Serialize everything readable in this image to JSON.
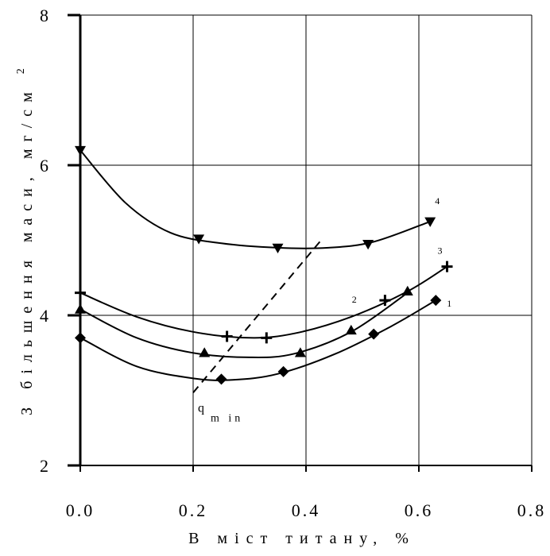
{
  "chart_data": {
    "type": "line",
    "xlabel": "В міст титану, %",
    "ylabel": "З більшення маси, мг/см",
    "ylabel_sup": "2",
    "xlim": [
      0,
      0.8
    ],
    "ylim": [
      2,
      8
    ],
    "x_ticks": [
      "0.0",
      "0.2",
      "0.4",
      "0.6",
      "0.8"
    ],
    "y_ticks": [
      "2",
      "4",
      "6",
      "8"
    ],
    "grid": true,
    "series": [
      {
        "name": "1",
        "marker": "diamond",
        "points": [
          [
            0.0,
            3.7
          ],
          [
            0.25,
            3.15
          ],
          [
            0.36,
            3.25
          ],
          [
            0.52,
            3.75
          ],
          [
            0.63,
            4.2
          ]
        ],
        "curve": [
          [
            0.0,
            3.7
          ],
          [
            0.1,
            3.32
          ],
          [
            0.2,
            3.16
          ],
          [
            0.27,
            3.14
          ],
          [
            0.35,
            3.22
          ],
          [
            0.45,
            3.48
          ],
          [
            0.55,
            3.85
          ],
          [
            0.63,
            4.2
          ]
        ]
      },
      {
        "name": "2",
        "marker": "triangle-up",
        "points": [
          [
            0.0,
            4.08
          ],
          [
            0.22,
            3.5
          ],
          [
            0.39,
            3.5
          ],
          [
            0.48,
            3.8
          ],
          [
            0.58,
            4.32
          ]
        ],
        "curve": [
          [
            0.0,
            4.08
          ],
          [
            0.1,
            3.7
          ],
          [
            0.2,
            3.5
          ],
          [
            0.3,
            3.44
          ],
          [
            0.38,
            3.49
          ],
          [
            0.48,
            3.78
          ],
          [
            0.58,
            4.3
          ]
        ]
      },
      {
        "name": "3",
        "marker": "plus",
        "points": [
          [
            0.0,
            4.3
          ],
          [
            0.26,
            3.72
          ],
          [
            0.33,
            3.7
          ],
          [
            0.54,
            4.2
          ],
          [
            0.65,
            4.65
          ]
        ],
        "curve": [
          [
            0.0,
            4.3
          ],
          [
            0.1,
            3.98
          ],
          [
            0.2,
            3.78
          ],
          [
            0.3,
            3.7
          ],
          [
            0.38,
            3.76
          ],
          [
            0.48,
            3.98
          ],
          [
            0.58,
            4.32
          ],
          [
            0.65,
            4.65
          ]
        ]
      },
      {
        "name": "4",
        "marker": "triangle-down",
        "points": [
          [
            0.0,
            6.2
          ],
          [
            0.21,
            5.02
          ],
          [
            0.35,
            4.9
          ],
          [
            0.51,
            4.95
          ],
          [
            0.62,
            5.25
          ]
        ],
        "curve": [
          [
            0.0,
            6.2
          ],
          [
            0.08,
            5.5
          ],
          [
            0.16,
            5.1
          ],
          [
            0.25,
            4.96
          ],
          [
            0.35,
            4.9
          ],
          [
            0.44,
            4.9
          ],
          [
            0.52,
            4.98
          ],
          [
            0.62,
            5.25
          ]
        ]
      }
    ],
    "annotations": [
      {
        "label": "q",
        "label_sub": "m in",
        "style": "dashed",
        "line": [
          [
            0.2,
            2.97
          ],
          [
            0.43,
            5.03
          ]
        ]
      }
    ]
  }
}
